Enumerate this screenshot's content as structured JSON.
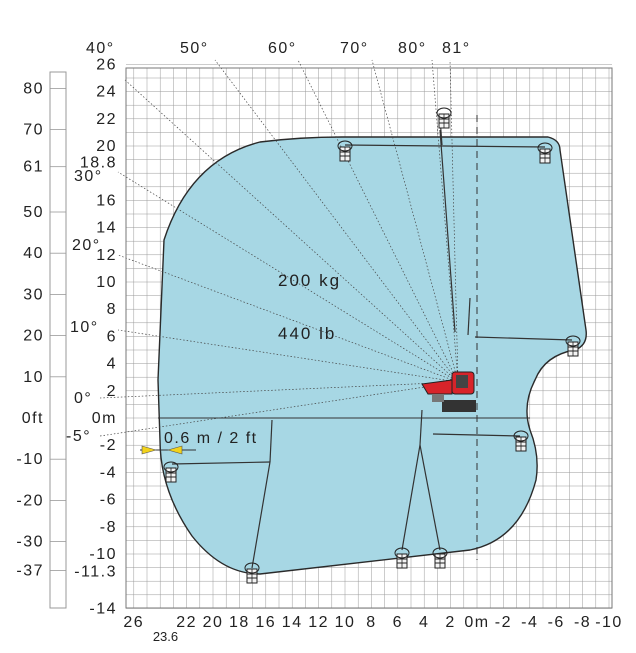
{
  "load_capacity": {
    "kg": "200 kg",
    "lb": "440 lb"
  },
  "basket_width": "0.6 m / 2 ft",
  "angles": [
    {
      "label": "40°"
    },
    {
      "label": "50°"
    },
    {
      "label": "60°"
    },
    {
      "label": "70°"
    },
    {
      "label": "80°"
    },
    {
      "label": "81°"
    },
    {
      "label": "30°"
    },
    {
      "label": "20°"
    },
    {
      "label": "10°"
    },
    {
      "label": "0°"
    },
    {
      "label": "-5°"
    }
  ],
  "ft_scale": {
    "unit_label": "0ft",
    "ticks": [
      {
        "label": "80",
        "ft": 80
      },
      {
        "label": "70",
        "ft": 70
      },
      {
        "label": "61",
        "ft": 61
      },
      {
        "label": "50",
        "ft": 50
      },
      {
        "label": "40",
        "ft": 40
      },
      {
        "label": "30",
        "ft": 30
      },
      {
        "label": "20",
        "ft": 20
      },
      {
        "label": "10",
        "ft": 10
      },
      {
        "label": "-10",
        "ft": -10
      },
      {
        "label": "-20",
        "ft": -20
      },
      {
        "label": "-30",
        "ft": -30
      },
      {
        "label": "-37",
        "ft": -37
      }
    ]
  },
  "m_scale_vertical": {
    "unit_label": "0m",
    "ticks": [
      {
        "label": "26",
        "m": 26
      },
      {
        "label": "24",
        "m": 24
      },
      {
        "label": "22",
        "m": 22
      },
      {
        "label": "20",
        "m": 20
      },
      {
        "label": "18.8",
        "m": 18.8
      },
      {
        "label": "16",
        "m": 16
      },
      {
        "label": "14",
        "m": 14
      },
      {
        "label": "12",
        "m": 12
      },
      {
        "label": "10",
        "m": 10
      },
      {
        "label": "8",
        "m": 8
      },
      {
        "label": "6",
        "m": 6
      },
      {
        "label": "4",
        "m": 4
      },
      {
        "label": "2",
        "m": 2
      },
      {
        "label": "-2",
        "m": -2
      },
      {
        "label": "-4",
        "m": -4
      },
      {
        "label": "-6",
        "m": -6
      },
      {
        "label": "-8",
        "m": -8
      },
      {
        "label": "-10",
        "m": -10
      },
      {
        "label": "-11.3",
        "m": -11.3
      },
      {
        "label": "-14",
        "m": -14
      }
    ]
  },
  "m_scale_horizontal": {
    "ticks": [
      {
        "label": "26",
        "m": 26
      },
      {
        "label": "23.6",
        "m": 23.6
      },
      {
        "label": "22",
        "m": 22
      },
      {
        "label": "20",
        "m": 20
      },
      {
        "label": "18",
        "m": 18
      },
      {
        "label": "16",
        "m": 16
      },
      {
        "label": "14",
        "m": 14
      },
      {
        "label": "12",
        "m": 12
      },
      {
        "label": "10",
        "m": 10
      },
      {
        "label": "8",
        "m": 8
      },
      {
        "label": "6",
        "m": 6
      },
      {
        "label": "4",
        "m": 4
      },
      {
        "label": "2",
        "m": 2
      },
      {
        "label": "0m",
        "m": 0
      },
      {
        "label": "-2",
        "m": -2
      },
      {
        "label": "-4",
        "m": -4
      },
      {
        "label": "-6",
        "m": -6
      },
      {
        "label": "-8",
        "m": -8
      },
      {
        "label": "-10",
        "m": -10
      }
    ]
  },
  "colors": {
    "envelope": "#a7d7e4",
    "outline": "#2a2a2a",
    "grid": "#8a8a8a",
    "machine": "#d8242a",
    "marker": "#f2d21b"
  }
}
